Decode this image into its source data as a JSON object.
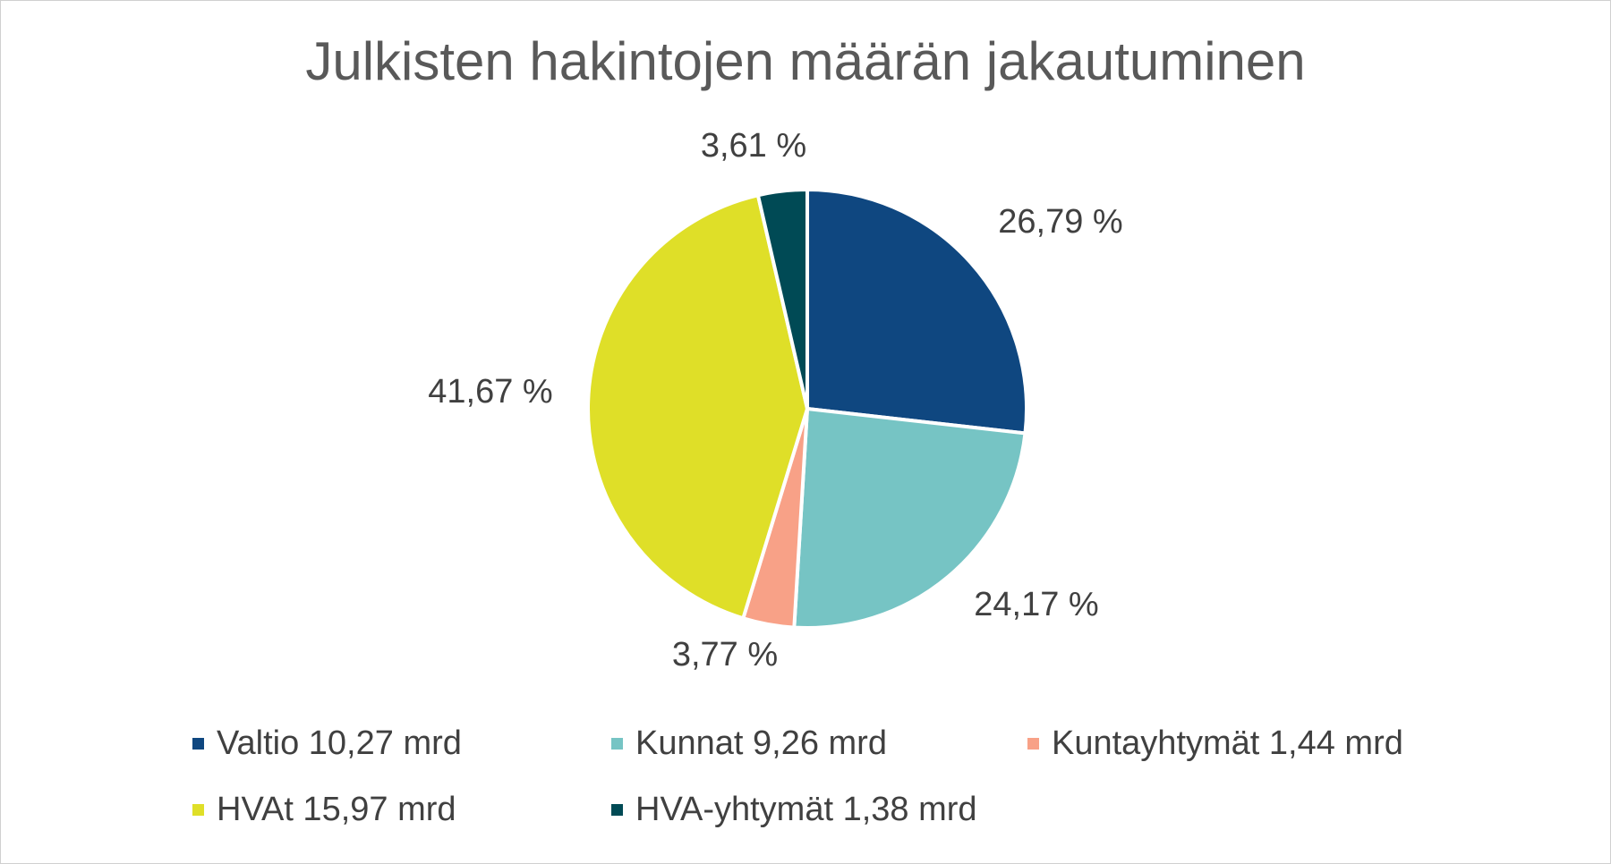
{
  "chart_data": {
    "type": "pie",
    "title": "Julkisten hakintojen määrän jakautuminen",
    "slices": [
      {
        "legend": "Valtio 10,27 mrd",
        "value": 26.79,
        "label": "26,79 %",
        "color": "#0f4780"
      },
      {
        "legend": "Kunnat 9,26 mrd",
        "value": 24.17,
        "label": "24,17 %",
        "color": "#76c4c4"
      },
      {
        "legend": "Kuntayhtymät 1,44 mrd",
        "value": 3.77,
        "label": "3,77 %",
        "color": "#f8a187"
      },
      {
        "legend": "HVAt 15,97 mrd",
        "value": 41.67,
        "label": "41,67 %",
        "color": "#dfdf28"
      },
      {
        "legend": "HVA-yhtymät 1,38 mrd",
        "value": 3.61,
        "label": "3,61 %",
        "color": "#004a55"
      }
    ],
    "legend_position": "bottom",
    "start_angle": "12 o'clock, clockwise"
  }
}
